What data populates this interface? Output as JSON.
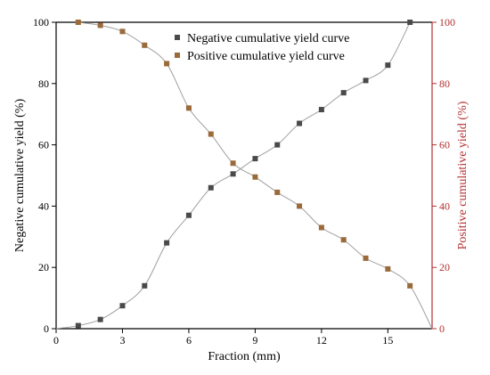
{
  "chart_data": {
    "type": "line",
    "xlabel": "Fraction (mm)",
    "ylabel_left": "Negative cumulative yield (%)",
    "ylabel_right": "Positive cumulative yield (%)",
    "xlim": [
      0,
      17
    ],
    "ylim": [
      0,
      100
    ],
    "x_ticks": [
      0,
      3,
      6,
      9,
      12,
      15
    ],
    "y_ticks": [
      0,
      20,
      40,
      60,
      80,
      100
    ],
    "grid": false,
    "legend_position": "top-center",
    "colors": {
      "negative_marker": "#4a4a4a",
      "positive_marker": "#9a6a3a",
      "right_axis": "#b33030",
      "curve": "#a0a0a0"
    },
    "series": [
      {
        "name": "Negative cumulative yield curve",
        "axis": "left",
        "x": [
          1,
          2,
          3,
          4,
          5,
          6,
          7,
          8,
          9,
          10,
          11,
          12,
          13,
          14,
          15,
          16
        ],
        "values": [
          1,
          3,
          7.5,
          14,
          28,
          37,
          46,
          50.5,
          55.5,
          60,
          67,
          71.5,
          77,
          81,
          86,
          100
        ]
      },
      {
        "name": "Positive cumulative yield curve",
        "axis": "right",
        "x": [
          1,
          2,
          3,
          4,
          5,
          6,
          7,
          8,
          9,
          10,
          11,
          12,
          13,
          14,
          15,
          16
        ],
        "values": [
          100,
          99,
          97,
          92.5,
          86.5,
          72,
          63.5,
          54,
          49.5,
          44.5,
          40,
          33,
          29,
          23,
          19.5,
          14
        ]
      }
    ]
  }
}
